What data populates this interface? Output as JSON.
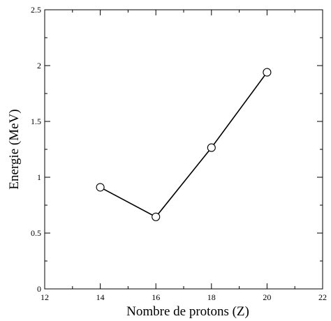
{
  "chart_data": {
    "type": "line",
    "title": "",
    "xlabel": "Nombre de protons (Z)",
    "ylabel": "Energie (MeV)",
    "xlim": [
      12,
      22
    ],
    "ylim": [
      0,
      2.5
    ],
    "x_ticks": [
      12,
      14,
      16,
      18,
      20,
      22
    ],
    "y_ticks": [
      0,
      0.5,
      1,
      1.5,
      2,
      2.5
    ],
    "x_tick_labels": [
      "12",
      "14",
      "16",
      "18",
      "20",
      "22"
    ],
    "y_tick_labels": [
      "0",
      "0.5",
      "1",
      "1.5",
      "2",
      "2.5"
    ],
    "x_minor_step": 1,
    "y_minor_step": 0.25,
    "grid": false,
    "marker": "open-circle",
    "line_color": "#000000",
    "series": [
      {
        "x": [
          14,
          16,
          18,
          20
        ],
        "y": [
          0.91,
          0.645,
          1.265,
          1.94
        ]
      }
    ]
  }
}
